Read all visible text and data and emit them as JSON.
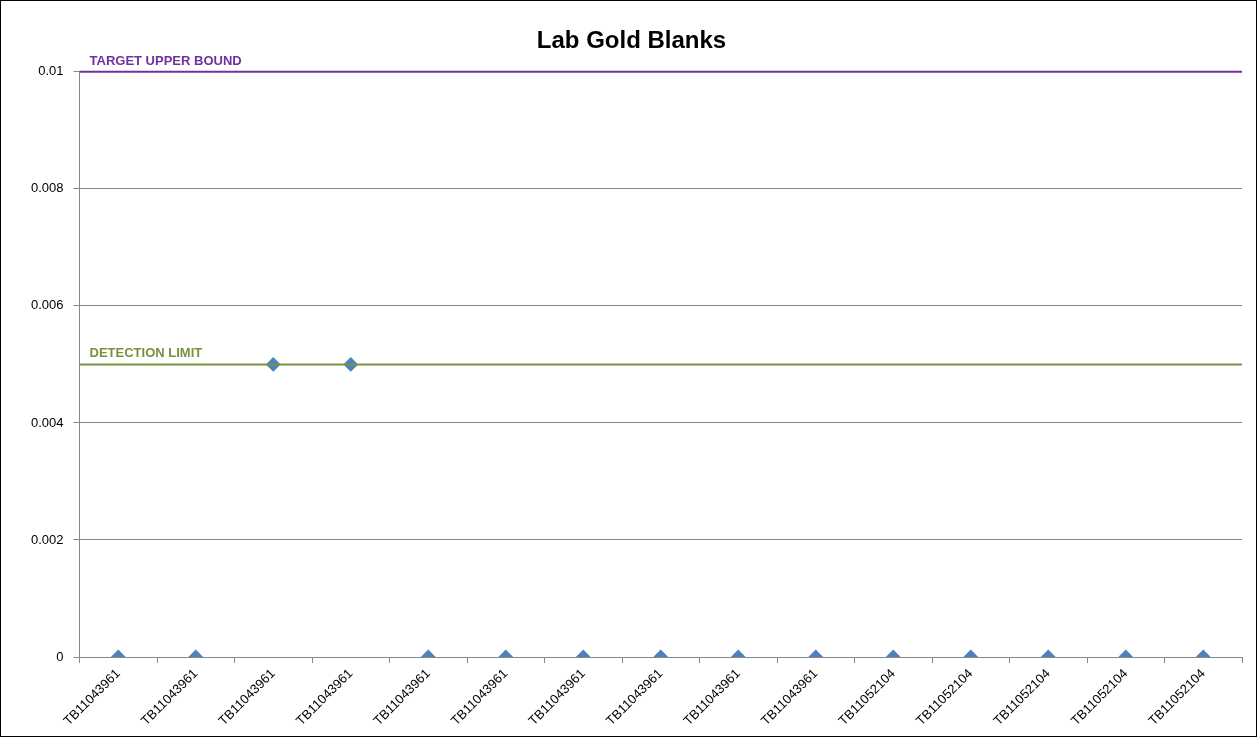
{
  "chart_data": {
    "type": "scatter",
    "title": "Lab Gold Blanks",
    "categories": [
      "TB11043961",
      "TB11043961",
      "TB11043961",
      "TB11043961",
      "TB11043961",
      "TB11043961",
      "TB11043961",
      "TB11043961",
      "TB11043961",
      "TB11043961",
      "TB11052104",
      "TB11052104",
      "TB11052104",
      "TB11052104",
      "TB11052104"
    ],
    "series": [
      {
        "color": "#4f81bd",
        "values": [
          0,
          0,
          0.005,
          0.005,
          0,
          0,
          0,
          0,
          0,
          0,
          0,
          0,
          0,
          0,
          0
        ]
      }
    ],
    "ylim": [
      0,
      0.01
    ],
    "yticks": [
      0,
      0.002,
      0.004,
      0.006,
      0.008,
      0.01
    ],
    "ref_lines": [
      {
        "axis": "y",
        "value": 0.01,
        "label": "TARGET UPPER BOUND",
        "color": "#7030a0"
      },
      {
        "axis": "y",
        "value": 0.005,
        "label": "DETECTION LIMIT",
        "color": "#77933c"
      }
    ],
    "grid": "y",
    "legend": false,
    "marker": "diamond"
  }
}
